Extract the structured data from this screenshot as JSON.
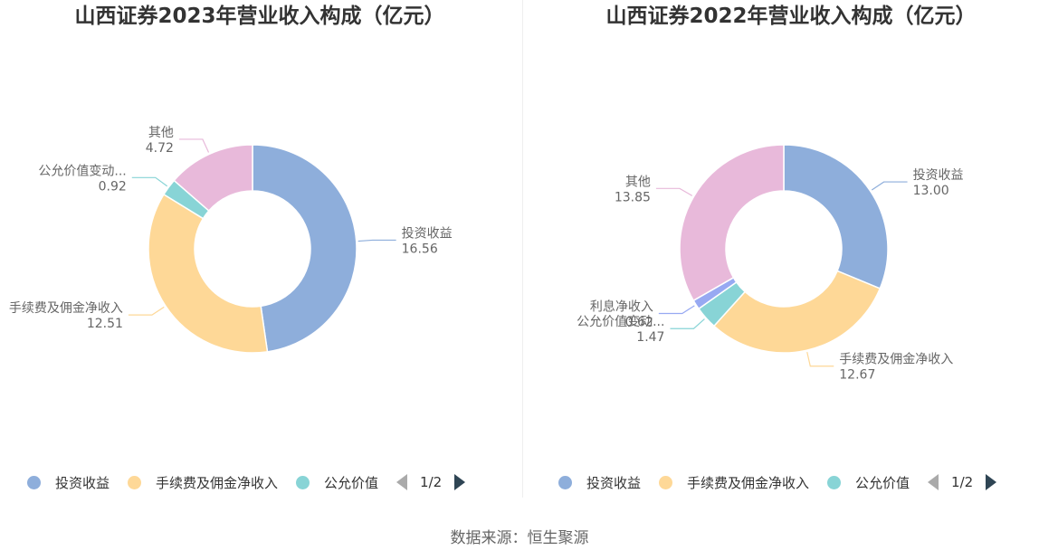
{
  "source": "数据来源：恒生聚源",
  "chart_data": [
    {
      "type": "pie",
      "title": "山西证券2023年营业收入构成（亿元）",
      "categories": [
        "投资收益",
        "手续费及佣金净收入",
        "公允价值变动...",
        "其他"
      ],
      "values": [
        16.56,
        12.51,
        0.92,
        4.72
      ],
      "value_labels": [
        "16.56",
        "12.51",
        "0.92",
        "4.72"
      ],
      "colors": [
        "#8eaedb",
        "#fed897",
        "#88d4d6",
        "#e8b9da"
      ],
      "legend": {
        "placement": "bottom",
        "items": [
          "投资收益",
          "手续费及佣金净收入",
          "公允价值"
        ],
        "page": "1/2"
      }
    },
    {
      "type": "pie",
      "title": "山西证券2022年营业收入构成（亿元）",
      "categories": [
        "投资收益",
        "手续费及佣金净收入",
        "公允价值变动...",
        "利息净收入",
        "其他"
      ],
      "values": [
        13.0,
        12.67,
        1.47,
        0.62,
        13.85
      ],
      "value_labels": [
        "13.00",
        "12.67",
        "1.47",
        "0.62",
        "13.85"
      ],
      "colors": [
        "#8eaedb",
        "#fed897",
        "#88d4d6",
        "#97a9f2",
        "#e8b9da"
      ],
      "legend": {
        "placement": "bottom",
        "items": [
          "投资收益",
          "手续费及佣金净收入",
          "公允价值"
        ],
        "page": "1/2"
      }
    }
  ]
}
